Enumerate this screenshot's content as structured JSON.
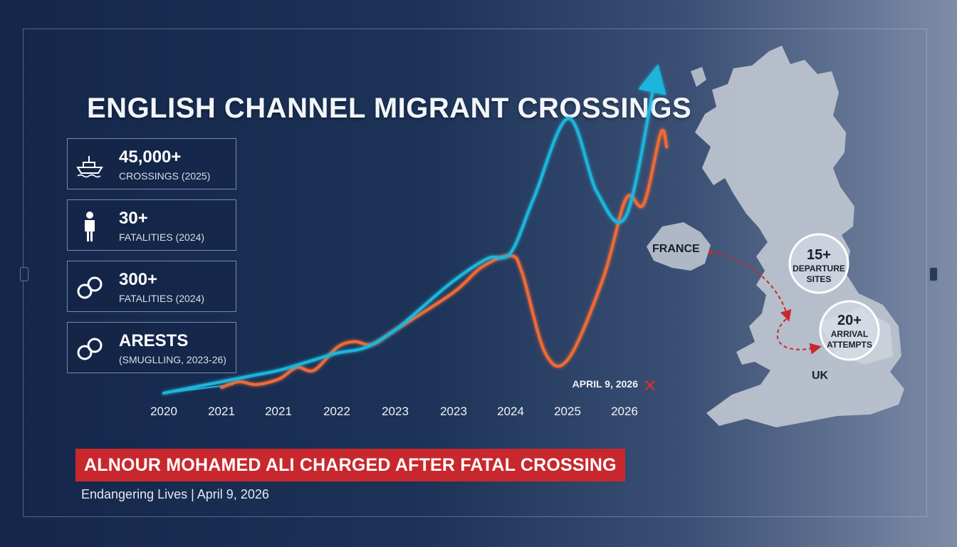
{
  "headline": {
    "title": "ENGLISH CHANNEL MIGRANT CROSSINGS",
    "banner": "ALNOUR MOHAMED ALI CHARGED AFTER FATAL CROSSING",
    "subline": "Endangering Lives | April 9, 2026"
  },
  "stats": [
    {
      "value": "45,000+",
      "label": "CROSSINGS (2025)",
      "icon": "boat-icon"
    },
    {
      "value": "30+",
      "label": "FATALITIES (2024)",
      "icon": "person-icon"
    },
    {
      "value": "300+",
      "label": "FATALITIES (2024)",
      "icon": "handcuffs-icon"
    },
    {
      "value": "ARESTS",
      "label": "(SMUGLLING, 2023-26)",
      "icon": "handcuffs-icon"
    }
  ],
  "map": {
    "labels": {
      "france": "FRANCE",
      "uk": "UK"
    },
    "callouts": [
      {
        "value": "15+",
        "line1": "DEPARTURE",
        "line2": "SITES"
      },
      {
        "value": "20+",
        "line1": "ARRIVAL",
        "line2": "ATTEMPTS"
      }
    ]
  },
  "chart_data": {
    "type": "line",
    "title": "ENGLISH CHANNEL MIGRANT CROSSINGS",
    "x_tick_labels": [
      "2020",
      "2021",
      "2021",
      "2022",
      "2023",
      "2023",
      "2024",
      "2025",
      "2026"
    ],
    "xlim": [
      0,
      8.5
    ],
    "ylim": [
      0,
      100
    ],
    "annotation": {
      "text": "APRIL 9, 2026",
      "x": 7.6
    },
    "colors": {
      "cyan": "#1fb6dc",
      "orange": "#f06a35"
    },
    "series": [
      {
        "name": "",
        "color": "cyan",
        "points": [
          [
            0,
            0
          ],
          [
            0.5,
            2
          ],
          [
            1,
            4
          ],
          [
            1.5,
            6
          ],
          [
            2,
            8
          ],
          [
            2.5,
            11
          ],
          [
            3,
            14
          ],
          [
            3.5,
            16
          ],
          [
            4,
            22
          ],
          [
            4.3,
            27
          ],
          [
            5,
            39
          ],
          [
            5.6,
            47
          ],
          [
            6,
            49
          ],
          [
            6.4,
            68
          ],
          [
            7,
            96
          ],
          [
            7.5,
            70
          ],
          [
            8,
            62
          ],
          [
            8.5,
            110
          ]
        ]
      },
      {
        "name": "",
        "color": "orange",
        "points": [
          [
            1,
            2
          ],
          [
            1.3,
            4
          ],
          [
            1.6,
            3
          ],
          [
            2,
            5
          ],
          [
            2.3,
            9
          ],
          [
            2.6,
            8
          ],
          [
            3,
            16
          ],
          [
            3.3,
            18
          ],
          [
            3.6,
            17
          ],
          [
            4,
            22
          ],
          [
            5,
            35
          ],
          [
            5.5,
            44
          ],
          [
            6,
            48
          ],
          [
            6.2,
            42
          ],
          [
            6.6,
            14
          ],
          [
            7,
            12
          ],
          [
            7.6,
            40
          ],
          [
            8,
            68
          ],
          [
            8.3,
            66
          ],
          [
            8.6,
            91
          ],
          [
            8.7,
            86
          ]
        ]
      }
    ]
  }
}
